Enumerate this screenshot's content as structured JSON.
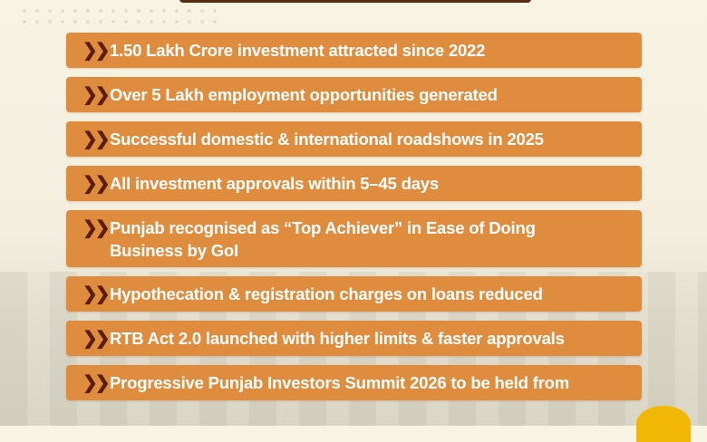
{
  "items": [
    {
      "icon": "double-chevron-right-icon",
      "text": "1.50 Lakh Crore investment attracted since 2022"
    },
    {
      "icon": "double-chevron-right-icon",
      "text": "Over 5 Lakh employment opportunities generated"
    },
    {
      "icon": "double-chevron-right-icon",
      "text": "Successful domestic & international roadshows in 2025"
    },
    {
      "icon": "double-chevron-right-icon",
      "text": "All investment approvals within 5–45 days"
    },
    {
      "icon": "double-chevron-right-icon",
      "text": "Punjab recognised as “Top Achiever” in Ease of Doing Business by GoI"
    },
    {
      "icon": "double-chevron-right-icon",
      "text": "Hypothecation & registration charges on loans reduced"
    },
    {
      "icon": "double-chevron-right-icon",
      "text": "RTB Act 2.0 launched with higher limits & faster approvals"
    },
    {
      "icon": "double-chevron-right-icon",
      "text": "Progressive Punjab Investors Summit 2026 to be held from"
    }
  ],
  "colors": {
    "item_bg": "#e08c3e",
    "chevron": "#5a1d0e",
    "text": "#ffffff",
    "header_bar": "#5a2a14",
    "background": "#f8f3e3"
  }
}
